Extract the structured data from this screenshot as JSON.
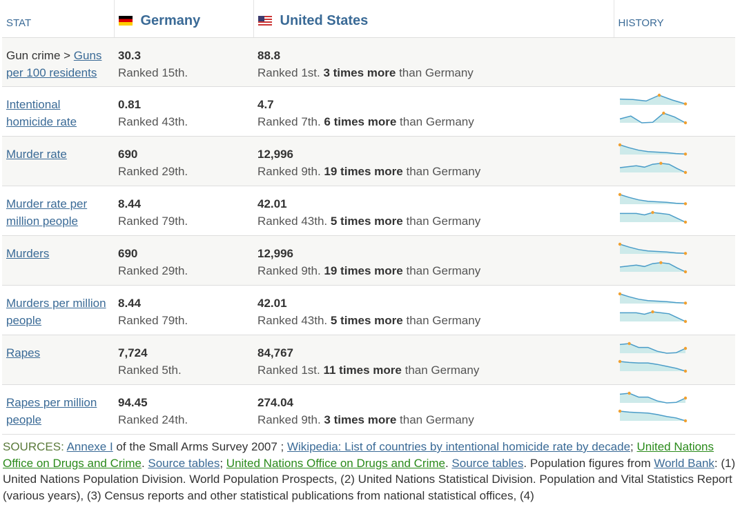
{
  "headers": {
    "stat": "STAT",
    "germany": "Germany",
    "us": "United States",
    "history": "HISTORY"
  },
  "colors": {
    "header": "#3a6a96",
    "row_alt": "#f7f7f5",
    "spark_line": "#4a9cc8",
    "spark_fill": "#cdeaea",
    "spark_dot": "#f0a030",
    "link_green": "#2a8a1a"
  },
  "rows": [
    {
      "prefix": "Gun crime > ",
      "stat": "Guns per 100 residents",
      "de_value": "30.3",
      "de_rank": "Ranked 15th.",
      "us_value": "88.8",
      "us_rank": "Ranked 1st.",
      "times": "3 times more",
      "than": " than Germany",
      "history": null
    },
    {
      "prefix": "",
      "stat": "Intentional homicide rate",
      "de_value": "0.81",
      "de_rank": "Ranked 43th.",
      "us_value": "4.7",
      "us_rank": "Ranked 7th.",
      "times": "6 times more",
      "than": " than Germany",
      "history": [
        [
          0.6,
          0.55,
          0.4,
          1,
          0.5,
          0.1
        ],
        [
          0.4,
          0.7,
          0,
          0.05,
          1,
          0.6,
          0
        ]
      ]
    },
    {
      "prefix": "",
      "stat": "Murder rate",
      "de_value": "690",
      "de_rank": "Ranked 29th.",
      "us_value": "12,996",
      "us_rank": "Ranked 9th.",
      "times": "19 times more",
      "than": " than Germany",
      "history": [
        [
          1,
          0.7,
          0.45,
          0.3,
          0.25,
          0.2,
          0.1,
          0.05
        ],
        [
          0.5,
          0.6,
          0.7,
          0.55,
          0.85,
          0.95,
          0.85,
          0.4,
          0
        ]
      ]
    },
    {
      "prefix": "",
      "stat": "Murder rate per million people",
      "de_value": "8.44",
      "de_rank": "Ranked 79th.",
      "us_value": "42.01",
      "us_rank": "Ranked 43th.",
      "times": "5 times more",
      "than": " than Germany",
      "history": [
        [
          1,
          0.7,
          0.45,
          0.3,
          0.25,
          0.2,
          0.1,
          0.05
        ],
        [
          0.9,
          0.9,
          0.9,
          0.75,
          1,
          0.9,
          0.8,
          0.4,
          0
        ]
      ]
    },
    {
      "prefix": "",
      "stat": "Murders",
      "de_value": "690",
      "de_rank": "Ranked 29th.",
      "us_value": "12,996",
      "us_rank": "Ranked 9th.",
      "times": "19 times more",
      "than": " than Germany",
      "history": [
        [
          1,
          0.7,
          0.45,
          0.3,
          0.25,
          0.2,
          0.1,
          0.05
        ],
        [
          0.5,
          0.6,
          0.7,
          0.55,
          0.85,
          0.95,
          0.85,
          0.4,
          0
        ]
      ]
    },
    {
      "prefix": "",
      "stat": "Murders per million people",
      "de_value": "8.44",
      "de_rank": "Ranked 79th.",
      "us_value": "42.01",
      "us_rank": "Ranked 43th.",
      "times": "5 times more",
      "than": " than Germany",
      "history": [
        [
          1,
          0.7,
          0.45,
          0.3,
          0.25,
          0.2,
          0.1,
          0.05
        ],
        [
          0.9,
          0.9,
          0.9,
          0.75,
          1,
          0.9,
          0.8,
          0.4,
          0
        ]
      ]
    },
    {
      "prefix": "",
      "stat": "Rapes",
      "de_value": "7,724",
      "de_rank": "Ranked 5th.",
      "us_value": "84,767",
      "us_rank": "Ranked 1st.",
      "times": "11 times more",
      "than": " than Germany",
      "history": [
        [
          0.9,
          1,
          0.6,
          0.6,
          0.2,
          0,
          0.05,
          0.5
        ],
        [
          1,
          0.9,
          0.85,
          0.85,
          0.7,
          0.5,
          0.3,
          0
        ]
      ]
    },
    {
      "prefix": "",
      "stat": "Rapes per million people",
      "de_value": "94.45",
      "de_rank": "Ranked 24th.",
      "us_value": "274.04",
      "us_rank": "Ranked 9th.",
      "times": "3 times more",
      "than": " than Germany",
      "history": [
        [
          0.9,
          1,
          0.6,
          0.6,
          0.2,
          0,
          0.05,
          0.5
        ],
        [
          1,
          0.9,
          0.85,
          0.8,
          0.65,
          0.45,
          0.3,
          0
        ]
      ]
    }
  ],
  "sources": {
    "label": "SOURCES: ",
    "l1": "Annexe I",
    "t1": " of the Small Arms Survey 2007 ; ",
    "l2": "Wikipedia: List of countries by intentional homicide rate by decade",
    "t2": "; ",
    "l3": "United Nations Office on Drugs and Crime",
    "t3": ". ",
    "l4": "Source tables",
    "t4": "; ",
    "l5": "United Nations Office on Drugs and Crime",
    "t5": ". ",
    "l6": "Source tables",
    "t6": ". Population figures from ",
    "l7": "World Bank",
    "t7": ": (1) United Nations Population Division. World Population Prospects, (2) United Nations Statistical Division. Population and Vital Statistics Report (various years), (3) Census reports and other statistical publications from national statistical offices, (4)"
  }
}
